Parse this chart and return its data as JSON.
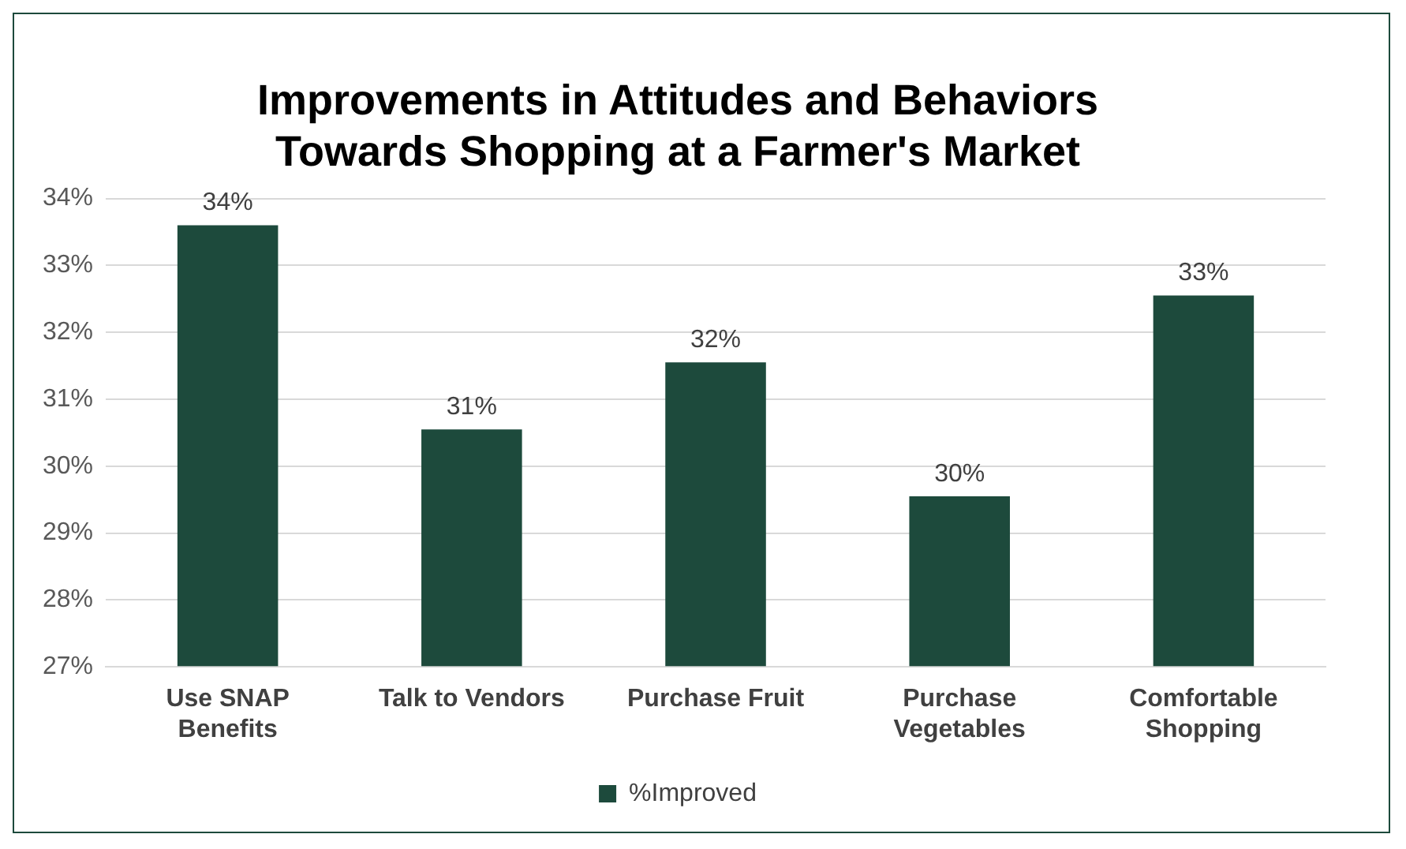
{
  "chart_data": {
    "type": "bar",
    "title": "Improvements in Attitudes and Behaviors Towards Shopping at a Farmer's Market",
    "categories": [
      "Use SNAP Benefits",
      "Talk to Vendors",
      "Purchase Fruit",
      "Purchase Vegetables",
      "Comfortable Shopping"
    ],
    "series": [
      {
        "name": "%Improved",
        "color": "#1d4a3c",
        "values": [
          33.6,
          30.55,
          31.55,
          29.55,
          32.55
        ],
        "value_labels": [
          "34%",
          "31%",
          "32%",
          "30%",
          "33%"
        ]
      }
    ],
    "ylim": [
      27,
      34
    ],
    "yticks": [
      {
        "value": 27,
        "label": "27%"
      },
      {
        "value": 28,
        "label": "28%"
      },
      {
        "value": 29,
        "label": "29%"
      },
      {
        "value": 30,
        "label": "30%"
      },
      {
        "value": 31,
        "label": "31%"
      },
      {
        "value": 32,
        "label": "32%"
      },
      {
        "value": 33,
        "label": "33%"
      },
      {
        "value": 34,
        "label": "34%"
      }
    ],
    "grid": "y",
    "legend": "bottom"
  }
}
